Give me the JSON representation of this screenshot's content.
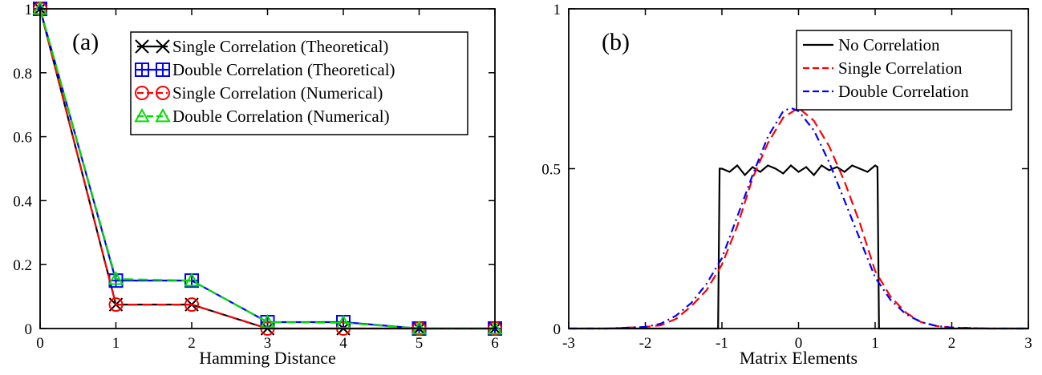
{
  "chart_data": [
    {
      "type": "line",
      "panel_label": "(a)",
      "xlabel": "Hamming Distance",
      "ylabel": "",
      "xlim": [
        0,
        6
      ],
      "ylim": [
        0,
        1
      ],
      "xticks": [
        "0",
        "1",
        "2",
        "3",
        "4",
        "5",
        "6"
      ],
      "yticks": [
        "0",
        "0.2",
        "0.4",
        "0.6",
        "0.8",
        "1"
      ],
      "legend_position": "top-right",
      "x": [
        0,
        1,
        2,
        3,
        4,
        5,
        6
      ],
      "series": [
        {
          "name": "Single Correlation (Theoretical)",
          "color": "#000000",
          "marker": "x",
          "dash": "solid",
          "values": [
            1.0,
            0.075,
            0.075,
            0.0,
            0.0,
            0.0,
            0.0
          ]
        },
        {
          "name": "Double Correlation (Theoretical)",
          "color": "#0000ff",
          "marker": "square-plus",
          "dash": "solid",
          "values": [
            1.0,
            0.15,
            0.15,
            0.02,
            0.02,
            0.0,
            0.0
          ]
        },
        {
          "name": "Single Correlation (Numerical)",
          "color": "#ff0000",
          "marker": "circle",
          "dash": "dashed",
          "values": [
            1.0,
            0.075,
            0.075,
            0.0,
            0.0,
            0.0,
            0.0
          ]
        },
        {
          "name": "Double Correlation (Numerical)",
          "color": "#00dd00",
          "marker": "triangle",
          "dash": "dashed",
          "values": [
            1.0,
            0.155,
            0.15,
            0.02,
            0.018,
            0.0,
            0.0
          ]
        }
      ]
    },
    {
      "type": "line",
      "panel_label": "(b)",
      "xlabel": "Matrix Elements",
      "ylabel": "",
      "xlim": [
        -3,
        3
      ],
      "ylim": [
        0,
        1
      ],
      "xticks": [
        "-3",
        "-2",
        "-1",
        "0",
        "1",
        "2",
        "3"
      ],
      "yticks": [
        "0",
        "0.5",
        "1"
      ],
      "legend_position": "top-right",
      "series": [
        {
          "name": "No Correlation",
          "color": "#000000",
          "dash": "solid",
          "x": [
            -3.0,
            -1.05,
            -1.03,
            -1.0,
            -0.9,
            -0.8,
            -0.7,
            -0.6,
            -0.5,
            -0.4,
            -0.3,
            -0.2,
            -0.1,
            0.0,
            0.1,
            0.2,
            0.3,
            0.4,
            0.5,
            0.6,
            0.7,
            0.8,
            0.9,
            1.0,
            1.03,
            1.05,
            3.0
          ],
          "y": [
            0.0,
            0.0,
            0.5,
            0.5,
            0.49,
            0.51,
            0.48,
            0.505,
            0.49,
            0.51,
            0.5,
            0.485,
            0.51,
            0.49,
            0.505,
            0.48,
            0.51,
            0.495,
            0.505,
            0.49,
            0.51,
            0.5,
            0.49,
            0.51,
            0.505,
            0.0,
            0.0
          ]
        },
        {
          "name": "Single Correlation",
          "color": "#ff0000",
          "dash": "dashed",
          "x": [
            -3.0,
            -2.5,
            -2.0,
            -1.8,
            -1.6,
            -1.4,
            -1.2,
            -1.0,
            -0.8,
            -0.6,
            -0.4,
            -0.2,
            0.0,
            0.2,
            0.4,
            0.6,
            0.8,
            1.0,
            1.2,
            1.4,
            1.6,
            1.8,
            2.0,
            2.5,
            3.0
          ],
          "y": [
            0.0,
            0.0,
            0.005,
            0.01,
            0.03,
            0.07,
            0.12,
            0.2,
            0.32,
            0.47,
            0.58,
            0.66,
            0.69,
            0.65,
            0.57,
            0.46,
            0.33,
            0.18,
            0.1,
            0.05,
            0.02,
            0.008,
            0.003,
            0.0,
            0.0
          ]
        },
        {
          "name": "Double Correlation",
          "color": "#0000ff",
          "dash": "dashdot",
          "x": [
            -3.0,
            -2.5,
            -2.0,
            -1.8,
            -1.6,
            -1.4,
            -1.2,
            -1.0,
            -0.8,
            -0.6,
            -0.4,
            -0.2,
            -0.1,
            0.0,
            0.2,
            0.4,
            0.6,
            0.8,
            1.0,
            1.2,
            1.4,
            1.6,
            1.8,
            2.0,
            2.5,
            3.0
          ],
          "y": [
            0.0,
            0.0,
            0.005,
            0.015,
            0.04,
            0.08,
            0.14,
            0.22,
            0.35,
            0.48,
            0.6,
            0.68,
            0.69,
            0.68,
            0.62,
            0.52,
            0.4,
            0.28,
            0.16,
            0.09,
            0.045,
            0.02,
            0.008,
            0.003,
            0.0,
            0.0
          ]
        }
      ]
    }
  ]
}
